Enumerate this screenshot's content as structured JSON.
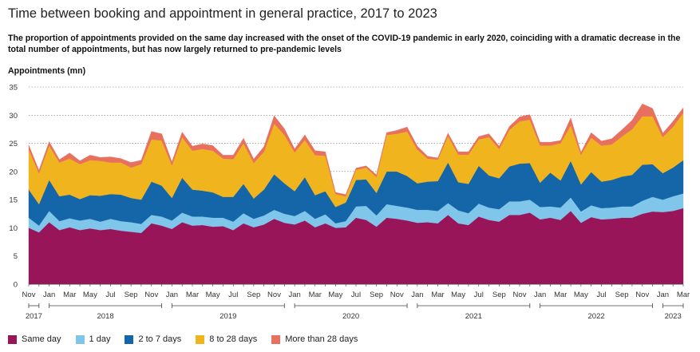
{
  "header": {
    "title": "Time between booking and appointment in general practice, 2017 to 2023",
    "subtitle": "The proportion of appointments provided on the same day increased with the onset of the COVID-19 pandemic in early 2020, coinciding with a dramatic decrease in the total number of appointments, but has now largely returned to pre-pandemic levels"
  },
  "chart_data": {
    "type": "area",
    "stacked": true,
    "ylabel": "Appointments (mn)",
    "ylim": [
      0,
      35
    ],
    "yticks": [
      0,
      5,
      10,
      15,
      20,
      25,
      30,
      35
    ],
    "grid": true,
    "legend_position": "bottom",
    "x": [
      "2017-11",
      "2017-12",
      "2018-01",
      "2018-02",
      "2018-03",
      "2018-04",
      "2018-05",
      "2018-06",
      "2018-07",
      "2018-08",
      "2018-09",
      "2018-10",
      "2018-11",
      "2018-12",
      "2019-01",
      "2019-02",
      "2019-03",
      "2019-04",
      "2019-05",
      "2019-06",
      "2019-07",
      "2019-08",
      "2019-09",
      "2019-10",
      "2019-11",
      "2019-12",
      "2020-01",
      "2020-02",
      "2020-03",
      "2020-04",
      "2020-05",
      "2020-06",
      "2020-07",
      "2020-08",
      "2020-09",
      "2020-10",
      "2020-11",
      "2020-12",
      "2021-01",
      "2021-02",
      "2021-03",
      "2021-04",
      "2021-05",
      "2021-06",
      "2021-07",
      "2021-08",
      "2021-09",
      "2021-10",
      "2021-11",
      "2021-12",
      "2022-01",
      "2022-02",
      "2022-03",
      "2022-04",
      "2022-05",
      "2022-06",
      "2022-07",
      "2022-08",
      "2022-09",
      "2022-10",
      "2022-11",
      "2022-12",
      "2023-01",
      "2023-02",
      "2023-03"
    ],
    "x_tick_labels": [
      "Nov",
      "Jan",
      "Mar",
      "May",
      "Jul",
      "Sep",
      "Nov",
      "Jan",
      "Mar",
      "May",
      "Jul",
      "Sep",
      "Nov",
      "Jan",
      "Mar",
      "May",
      "Jul",
      "Sep",
      "Nov",
      "Jan",
      "Mar",
      "May",
      "Jul",
      "Sep",
      "Nov",
      "Jan",
      "Mar",
      "May",
      "Jul",
      "Sep",
      "Nov",
      "Jan",
      "Mar"
    ],
    "year_labels": [
      "2017",
      "2018",
      "2019",
      "2020",
      "2021",
      "2022",
      "2023"
    ],
    "series": [
      {
        "name": "Same day",
        "color": "#99155a",
        "values": [
          10.0,
          9.2,
          11.0,
          9.6,
          10.1,
          9.6,
          9.9,
          9.6,
          9.8,
          9.5,
          9.3,
          9.1,
          10.8,
          10.4,
          9.8,
          11.0,
          10.4,
          10.5,
          10.2,
          10.3,
          9.6,
          10.8,
          10.1,
          10.6,
          11.6,
          10.9,
          10.6,
          11.3,
          10.1,
          10.8,
          10.0,
          10.1,
          11.8,
          11.4,
          10.2,
          11.8,
          11.6,
          11.3,
          10.9,
          11.0,
          10.8,
          12.3,
          10.8,
          10.5,
          12.0,
          11.4,
          11.1,
          12.3,
          12.3,
          12.7,
          11.5,
          11.8,
          11.4,
          13.0,
          10.9,
          11.9,
          11.5,
          11.6,
          11.8,
          11.8,
          12.5,
          12.9,
          12.8,
          13.0,
          13.5
        ]
      },
      {
        "name": "1 day",
        "color": "#80c6ea",
        "values": [
          1.8,
          1.2,
          2.0,
          1.6,
          1.6,
          1.7,
          1.7,
          1.5,
          1.8,
          1.7,
          1.7,
          1.6,
          1.5,
          1.6,
          1.5,
          1.7,
          1.6,
          1.5,
          1.6,
          1.5,
          1.5,
          1.8,
          1.5,
          1.6,
          1.6,
          1.6,
          1.5,
          1.7,
          1.5,
          1.6,
          0.8,
          1.1,
          2.0,
          2.5,
          2.0,
          2.4,
          2.3,
          2.3,
          2.3,
          2.2,
          2.2,
          2.1,
          2.3,
          2.1,
          2.3,
          2.2,
          2.2,
          2.4,
          2.4,
          2.3,
          2.2,
          2.0,
          2.2,
          2.4,
          2.0,
          2.1,
          2.0,
          2.0,
          2.0,
          2.0,
          2.3,
          2.6,
          2.2,
          2.6,
          2.6
        ]
      },
      {
        "name": "2 to 7 days",
        "color": "#1466a8",
        "values": [
          5.0,
          3.8,
          5.5,
          4.4,
          4.2,
          3.8,
          4.2,
          4.6,
          4.4,
          4.7,
          4.3,
          4.3,
          5.9,
          5.5,
          4.0,
          6.2,
          4.8,
          4.6,
          4.5,
          3.7,
          4.4,
          5.2,
          3.6,
          4.6,
          6.3,
          5.4,
          4.4,
          6.0,
          4.2,
          4.1,
          2.9,
          3.3,
          4.7,
          4.7,
          4.0,
          5.8,
          6.1,
          5.6,
          4.7,
          5.0,
          5.3,
          7.2,
          5.0,
          5.2,
          6.7,
          5.7,
          5.5,
          6.2,
          6.7,
          6.5,
          4.3,
          6.0,
          4.8,
          6.5,
          4.8,
          5.9,
          4.7,
          4.9,
          5.3,
          5.6,
          6.4,
          5.8,
          4.7,
          5.1,
          5.9
        ]
      },
      {
        "name": "8 to 28 days",
        "color": "#f0b41e",
        "values": [
          7.1,
          5.5,
          6.1,
          6.0,
          6.4,
          6.2,
          6.2,
          6.2,
          5.6,
          5.7,
          5.4,
          6.3,
          7.5,
          8.0,
          5.8,
          7.2,
          6.9,
          7.4,
          7.4,
          6.8,
          6.7,
          7.2,
          6.3,
          6.7,
          9.0,
          8.6,
          6.9,
          6.6,
          7.1,
          6.3,
          2.3,
          1.1,
          1.8,
          2.1,
          2.8,
          6.5,
          6.7,
          7.9,
          6.0,
          4.1,
          3.8,
          4.7,
          4.9,
          5.2,
          4.7,
          6.8,
          5.2,
          6.5,
          7.5,
          7.7,
          6.6,
          4.8,
          6.6,
          6.3,
          5.3,
          6.1,
          6.4,
          6.3,
          7.1,
          8.1,
          8.6,
          8.5,
          6.4,
          7.2,
          8.4
        ]
      },
      {
        "name": "More than 28 days",
        "color": "#e8705e",
        "values": [
          0.8,
          0.5,
          0.7,
          0.5,
          1.0,
          0.6,
          0.9,
          0.6,
          1.0,
          0.7,
          0.9,
          0.7,
          1.4,
          1.2,
          0.6,
          0.9,
          0.8,
          0.9,
          0.9,
          0.6,
          0.7,
          0.9,
          0.7,
          0.9,
          1.4,
          1.1,
          0.6,
          0.9,
          0.8,
          0.7,
          0.3,
          0.3,
          0.3,
          0.3,
          0.4,
          0.4,
          0.6,
          0.8,
          0.6,
          0.4,
          0.3,
          0.5,
          0.5,
          0.5,
          0.5,
          0.6,
          0.5,
          0.6,
          0.8,
          0.9,
          0.6,
          0.6,
          0.5,
          1.3,
          0.4,
          0.9,
          0.8,
          1.0,
          1.2,
          1.6,
          2.2,
          1.4,
          0.7,
          1.0,
          0.9
        ]
      }
    ]
  }
}
